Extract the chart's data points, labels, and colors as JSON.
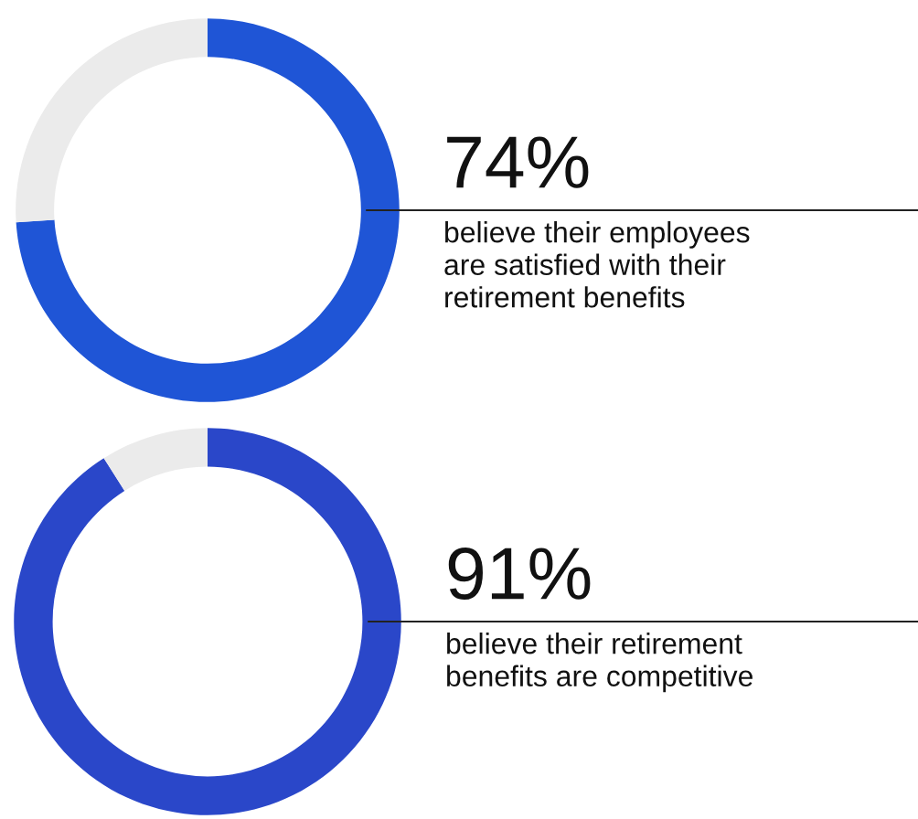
{
  "chart_data": [
    {
      "type": "donut",
      "categories": [
        null,
        null
      ],
      "values": [
        74,
        26
      ],
      "colors": [
        "#1f55d6",
        "#ebebeb"
      ],
      "value_labels": [
        "74%",
        null
      ],
      "annotations": [
        "believe their employees\nare satisfied with their\nretirement benefits"
      ]
    },
    {
      "type": "donut",
      "categories": [
        null,
        null
      ],
      "values": [
        91,
        9
      ],
      "colors": [
        "#2a47c9",
        "#ebebeb"
      ],
      "value_labels": [
        "91%",
        null
      ],
      "annotations": [
        "believe their retirement\nbenefits are competitive"
      ]
    }
  ]
}
